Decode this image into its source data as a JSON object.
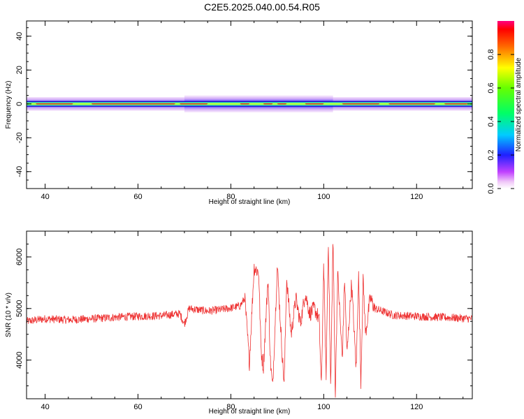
{
  "title": "C2E5.2025.040.00.54.R05",
  "chart_data": [
    {
      "type": "heatmap",
      "xlabel": "Height of straight line (km)",
      "ylabel": "Frequency (Hz)",
      "xlim": [
        36,
        132
      ],
      "ylim": [
        -50,
        49
      ],
      "x_ticks": [
        40,
        60,
        80,
        100,
        120
      ],
      "y_ticks": [
        -40,
        -20,
        0,
        20,
        40
      ],
      "colorbar": {
        "label": "Normalized spectral amplitude",
        "range": [
          0,
          1
        ],
        "ticks": [
          "0.0",
          "0.2",
          "0.4",
          "0.6",
          "0.8"
        ],
        "colormap": "rainbow (magenta-blue-cyan-green-yellow-red)"
      },
      "band_center_hz": 0,
      "band_halfwidth_hz": 2,
      "band_x_start": 36,
      "band_x_end": 132,
      "band_center_amplitude": 0.95,
      "widened_region_km": [
        70,
        102
      ],
      "widened_halfwidth_hz": 3,
      "grid": false
    },
    {
      "type": "line",
      "xlabel": "Height of straight line (km)",
      "ylabel": "SNR (10 * v/v)",
      "xlim": [
        36,
        132
      ],
      "ylim": [
        3250,
        6500
      ],
      "x_ticks": [
        40,
        60,
        80,
        100,
        120
      ],
      "y_ticks": [
        4000,
        5000,
        6000
      ],
      "color": "#ee3333",
      "grid": false,
      "series": [
        {
          "x": [
            36,
            40,
            45,
            50,
            55,
            60,
            65,
            69,
            70,
            71,
            75,
            78,
            80,
            82,
            83,
            84,
            85,
            86,
            86.5,
            87,
            88,
            88.5,
            89,
            90,
            91,
            91.5,
            92,
            93,
            94,
            95,
            96,
            97,
            98,
            99,
            99.5,
            100,
            100.5,
            101,
            101.5,
            102,
            102.5,
            103,
            104,
            104.5,
            105,
            106,
            107,
            107.5,
            108,
            108.5,
            109,
            110,
            111,
            115,
            120,
            125,
            128,
            130,
            132
          ],
          "y": [
            4750,
            4800,
            4780,
            4800,
            4830,
            4850,
            4860,
            4900,
            4700,
            5000,
            4950,
            4980,
            5010,
            5050,
            5200,
            3950,
            5800,
            5700,
            4200,
            3850,
            5600,
            4000,
            3450,
            5850,
            4200,
            3500,
            5600,
            4500,
            5200,
            4700,
            5300,
            4900,
            5000,
            4800,
            3450,
            5900,
            3600,
            6350,
            3400,
            6400,
            3300,
            5700,
            4000,
            5600,
            4100,
            5500,
            3800,
            5700,
            3600,
            5600,
            4500,
            5200,
            5000,
            4870,
            4850,
            4830,
            4820,
            4810,
            4800
          ]
        }
      ]
    }
  ]
}
